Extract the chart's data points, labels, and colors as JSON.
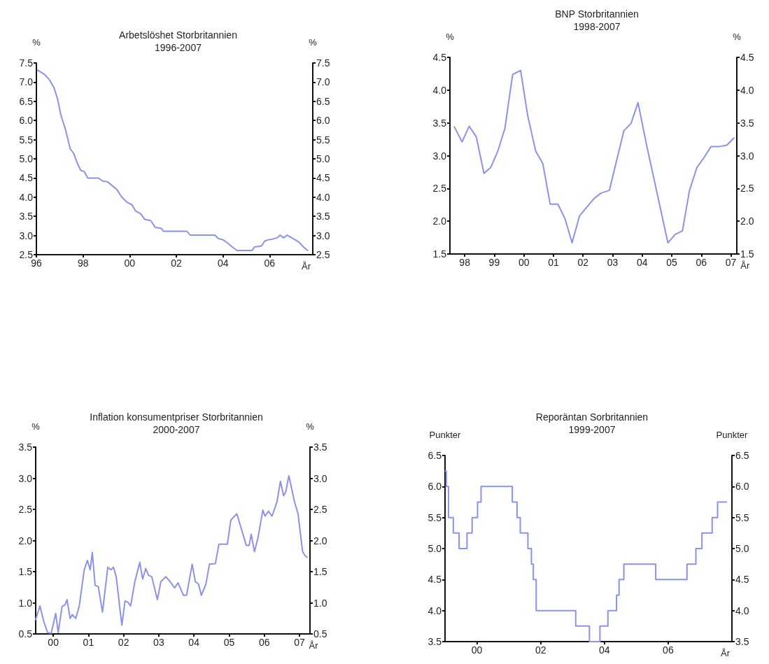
{
  "chart_data": [
    {
      "type": "line",
      "title": "Arbetslöshet Storbritannien",
      "subtitle": "1996-2007",
      "xlabel": "År",
      "ylabel": "%",
      "y2label": "%",
      "x": [
        1996.05,
        1996.35,
        1996.55,
        1996.75,
        1996.9,
        1997.05,
        1997.25,
        1997.45,
        1997.6,
        1997.75,
        1997.9,
        1998.05,
        1998.2,
        1998.65,
        1998.85,
        1999.05,
        1999.25,
        1999.45,
        1999.65,
        1999.9,
        2000.1,
        2000.25,
        2000.45,
        2000.65,
        2000.9,
        2001.1,
        2001.35,
        2001.45,
        2002.45,
        2002.6,
        2003.65,
        2003.8,
        2004.0,
        2004.2,
        2004.4,
        2004.6,
        2005.25,
        2005.35,
        2005.65,
        2005.8,
        2005.95,
        2006.1,
        2006.35,
        2006.45,
        2006.6,
        2006.75,
        2007.0,
        2007.25,
        2007.45,
        2007.63
      ],
      "series": [
        {
          "color": "#8c92e8",
          "values": [
            7.31,
            7.2,
            7.07,
            6.86,
            6.58,
            6.14,
            5.76,
            5.26,
            5.14,
            4.89,
            4.7,
            4.67,
            4.5,
            4.5,
            4.42,
            4.4,
            4.3,
            4.2,
            4.01,
            3.86,
            3.8,
            3.64,
            3.58,
            3.42,
            3.39,
            3.21,
            3.19,
            3.11,
            3.11,
            3.01,
            3.01,
            2.92,
            2.89,
            2.8,
            2.7,
            2.61,
            2.61,
            2.7,
            2.73,
            2.86,
            2.89,
            2.9,
            2.95,
            3.01,
            2.94,
            3.01,
            2.92,
            2.83,
            2.7,
            2.61
          ]
        }
      ],
      "xlim": [
        1996,
        2007.85
      ],
      "xticks": [
        {
          "value": 1996,
          "label": "96"
        },
        {
          "value": 1998,
          "label": "98"
        },
        {
          "value": 2000,
          "label": "00"
        },
        {
          "value": 2002,
          "label": "02"
        },
        {
          "value": 2004,
          "label": "04"
        },
        {
          "value": 2006,
          "label": "06"
        }
      ],
      "ylim": [
        2.5,
        7.5
      ],
      "yticks": [
        2.5,
        {
          "value": 3,
          "label": "3.0"
        },
        3.5,
        {
          "value": 4,
          "label": "4.0"
        },
        4.5,
        {
          "value": 5,
          "label": "5.0"
        },
        5.5,
        {
          "value": 6,
          "label": "6.0"
        },
        6.5,
        {
          "value": 7,
          "label": "7.0"
        },
        7.5
      ],
      "y2lim": [
        2.5,
        7.5
      ],
      "y2ticks": [
        2.5,
        {
          "value": 3,
          "label": "3.0"
        },
        3.5,
        {
          "value": 4,
          "label": "4.0"
        },
        4.5,
        {
          "value": 5,
          "label": "5.0"
        },
        5.5,
        {
          "value": 6,
          "label": "6.0"
        },
        6.5,
        {
          "value": 7,
          "label": "7.0"
        },
        7.5
      ]
    },
    {
      "type": "line",
      "title": "BNP Storbritannien",
      "subtitle": "1998-2007",
      "xlabel": "År",
      "ylabel": "%",
      "y2label": "%",
      "x": [
        1997.65,
        1997.91,
        1998.15,
        1998.39,
        1998.65,
        1998.88,
        1999.12,
        1999.36,
        1999.62,
        1999.89,
        2000.13,
        2000.4,
        2000.64,
        2000.89,
        2001.15,
        2001.39,
        2001.63,
        2001.88,
        2002.36,
        2002.61,
        2002.89,
        2003.38,
        2003.62,
        2003.86,
        2004.15,
        2004.87,
        2005.12,
        2005.36,
        2005.6,
        2005.85,
        2006.09,
        2006.33,
        2006.62,
        2006.86,
        2007.1
      ],
      "series": [
        {
          "color": "#8c92e8",
          "values": [
            3.44,
            3.21,
            3.45,
            3.29,
            2.73,
            2.82,
            3.07,
            3.42,
            4.24,
            4.3,
            3.61,
            3.07,
            2.88,
            2.26,
            2.26,
            2.04,
            1.67,
            2.08,
            2.34,
            2.43,
            2.47,
            3.38,
            3.49,
            3.81,
            3.16,
            1.67,
            1.8,
            1.85,
            2.47,
            2.82,
            2.97,
            3.14,
            3.14,
            3.16,
            3.27
          ]
        }
      ],
      "xlim": [
        1997.5,
        2007.2
      ],
      "xticks": [
        {
          "value": 1998,
          "label": "98"
        },
        {
          "value": 1999,
          "label": "99"
        },
        {
          "value": 2000,
          "label": "00"
        },
        {
          "value": 2001,
          "label": "01"
        },
        {
          "value": 2002,
          "label": "02"
        },
        {
          "value": 2003,
          "label": "03"
        },
        {
          "value": 2004,
          "label": "04"
        },
        {
          "value": 2005,
          "label": "05"
        },
        {
          "value": 2006,
          "label": "06"
        },
        {
          "value": 2007,
          "label": "07"
        }
      ],
      "ylim": [
        1.5,
        4.5
      ],
      "yticks": [
        1.5,
        {
          "value": 2,
          "label": "2.0"
        },
        2.5,
        {
          "value": 3,
          "label": "3.0"
        },
        3.5,
        {
          "value": 4,
          "label": "4.0"
        },
        4.5
      ],
      "y2lim": [
        1.5,
        4.5
      ],
      "y2ticks": [
        1.5,
        {
          "value": 2,
          "label": "2.0"
        },
        2.5,
        {
          "value": 3,
          "label": "3.0"
        },
        3.5,
        {
          "value": 4,
          "label": "4.0"
        },
        4.5
      ]
    },
    {
      "type": "line",
      "title": "Inflation konsumentpriser Storbritannien",
      "subtitle": "2000-2007",
      "xlabel": "År",
      "ylabel": "%",
      "y2label": "%",
      "x": [
        1999.5,
        1999.62,
        1999.74,
        1999.84,
        1999.94,
        2000.07,
        2000.14,
        2000.25,
        2000.34,
        2000.39,
        2000.48,
        2000.54,
        2000.64,
        2000.74,
        2000.88,
        2000.97,
        2001.05,
        2001.11,
        2001.19,
        2001.28,
        2001.4,
        2001.55,
        2001.64,
        2001.71,
        2001.79,
        2001.95,
        2002.04,
        2002.12,
        2002.2,
        2002.32,
        2002.46,
        2002.54,
        2002.63,
        2002.71,
        2002.8,
        2002.96,
        2003.06,
        2003.2,
        2003.32,
        2003.45,
        2003.55,
        2003.7,
        2003.79,
        2003.95,
        2004.04,
        2004.13,
        2004.21,
        2004.34,
        2004.44,
        2004.61,
        2004.71,
        2004.95,
        2005.05,
        2005.22,
        2005.49,
        2005.57,
        2005.63,
        2005.72,
        2005.82,
        2005.96,
        2006.02,
        2006.12,
        2006.22,
        2006.36,
        2006.46,
        2006.55,
        2006.61,
        2006.7,
        2006.86,
        2006.96,
        2007.09,
        2007.17,
        2007.22
      ],
      "series": [
        {
          "color": "#8c92e8",
          "values": [
            0.73,
            0.95,
            0.68,
            0.52,
            0.51,
            0.83,
            0.52,
            0.94,
            0.97,
            1.05,
            0.75,
            0.81,
            0.75,
            0.95,
            1.53,
            1.68,
            1.53,
            1.81,
            1.28,
            1.26,
            0.85,
            1.57,
            1.53,
            1.57,
            1.42,
            0.64,
            1.03,
            1.01,
            0.95,
            1.34,
            1.65,
            1.38,
            1.55,
            1.44,
            1.42,
            1.05,
            1.34,
            1.42,
            1.34,
            1.24,
            1.32,
            1.12,
            1.12,
            1.62,
            1.34,
            1.3,
            1.12,
            1.3,
            1.62,
            1.63,
            1.94,
            1.94,
            2.33,
            2.43,
            1.92,
            1.92,
            2.1,
            1.82,
            2.04,
            2.49,
            2.39,
            2.47,
            2.39,
            2.62,
            2.95,
            2.72,
            2.78,
            3.04,
            2.62,
            2.43,
            1.82,
            1.75,
            1.73
          ]
        }
      ],
      "xlim": [
        1999.5,
        2007.3
      ],
      "xticks": [
        {
          "value": 2000,
          "label": "00"
        },
        {
          "value": 2001,
          "label": "01"
        },
        {
          "value": 2002,
          "label": "02"
        },
        {
          "value": 2003,
          "label": "03"
        },
        {
          "value": 2004,
          "label": "04"
        },
        {
          "value": 2005,
          "label": "05"
        },
        {
          "value": 2006,
          "label": "06"
        },
        {
          "value": 2007,
          "label": "07"
        }
      ],
      "ylim": [
        0.5,
        3.5
      ],
      "yticks": [
        0.5,
        {
          "value": 1,
          "label": "1.0"
        },
        1.5,
        {
          "value": 2,
          "label": "2.0"
        },
        2.5,
        {
          "value": 3,
          "label": "3.0"
        },
        3.5
      ],
      "y2lim": [
        0.5,
        3.5
      ],
      "y2ticks": [
        0.5,
        {
          "value": 1,
          "label": "1.0"
        },
        1.5,
        {
          "value": 2,
          "label": "2.0"
        },
        2.5,
        {
          "value": 3,
          "label": "3.0"
        },
        3.5
      ]
    },
    {
      "type": "step",
      "title": "Reporäntan Sorbritannien",
      "subtitle": "1999-2007",
      "xlabel": "År",
      "ylabel": "Punkter",
      "y2label": "Punkter",
      "x": [
        1999.01,
        1999.04,
        1999.11,
        1999.26,
        1999.44,
        1999.69,
        1999.85,
        2000.02,
        2000.13,
        2001.11,
        2001.26,
        2001.36,
        2001.6,
        2001.71,
        2001.77,
        2001.86,
        2003.1,
        2003.53,
        2003.86,
        2004.11,
        2004.38,
        2004.46,
        2004.61,
        2005.61,
        2006.59,
        2006.87,
        2007.06,
        2007.38,
        2007.55,
        2007.83
      ],
      "series": [
        {
          "color": "#8c92e8",
          "values": [
            6.25,
            6.0,
            5.5,
            5.25,
            5.0,
            5.25,
            5.5,
            5.75,
            6.0,
            5.75,
            5.5,
            5.25,
            5.0,
            4.75,
            4.5,
            4.0,
            3.75,
            3.5,
            3.75,
            4.0,
            4.25,
            4.5,
            4.75,
            4.5,
            4.75,
            5.0,
            5.25,
            5.5,
            5.75,
            5.75
          ]
        }
      ],
      "xlim": [
        1999,
        2008
      ],
      "xticks": [
        {
          "value": 2000,
          "label": "00"
        },
        {
          "value": 2002,
          "label": "02"
        },
        {
          "value": 2004,
          "label": "04"
        },
        {
          "value": 2006,
          "label": "06"
        }
      ],
      "ylim": [
        3.5,
        6.5
      ],
      "yticks": [
        3.5,
        {
          "value": 4,
          "label": "4.0"
        },
        4.5,
        {
          "value": 5,
          "label": "5.0"
        },
        5.5,
        {
          "value": 6,
          "label": "6.0"
        },
        6.5
      ],
      "y2lim": [
        3.5,
        6.5
      ],
      "y2ticks": [
        3.5,
        {
          "value": 4,
          "label": "4.0"
        },
        4.5,
        {
          "value": 5,
          "label": "5.0"
        },
        5.5,
        {
          "value": 6,
          "label": "6.0"
        },
        6.5
      ]
    }
  ]
}
